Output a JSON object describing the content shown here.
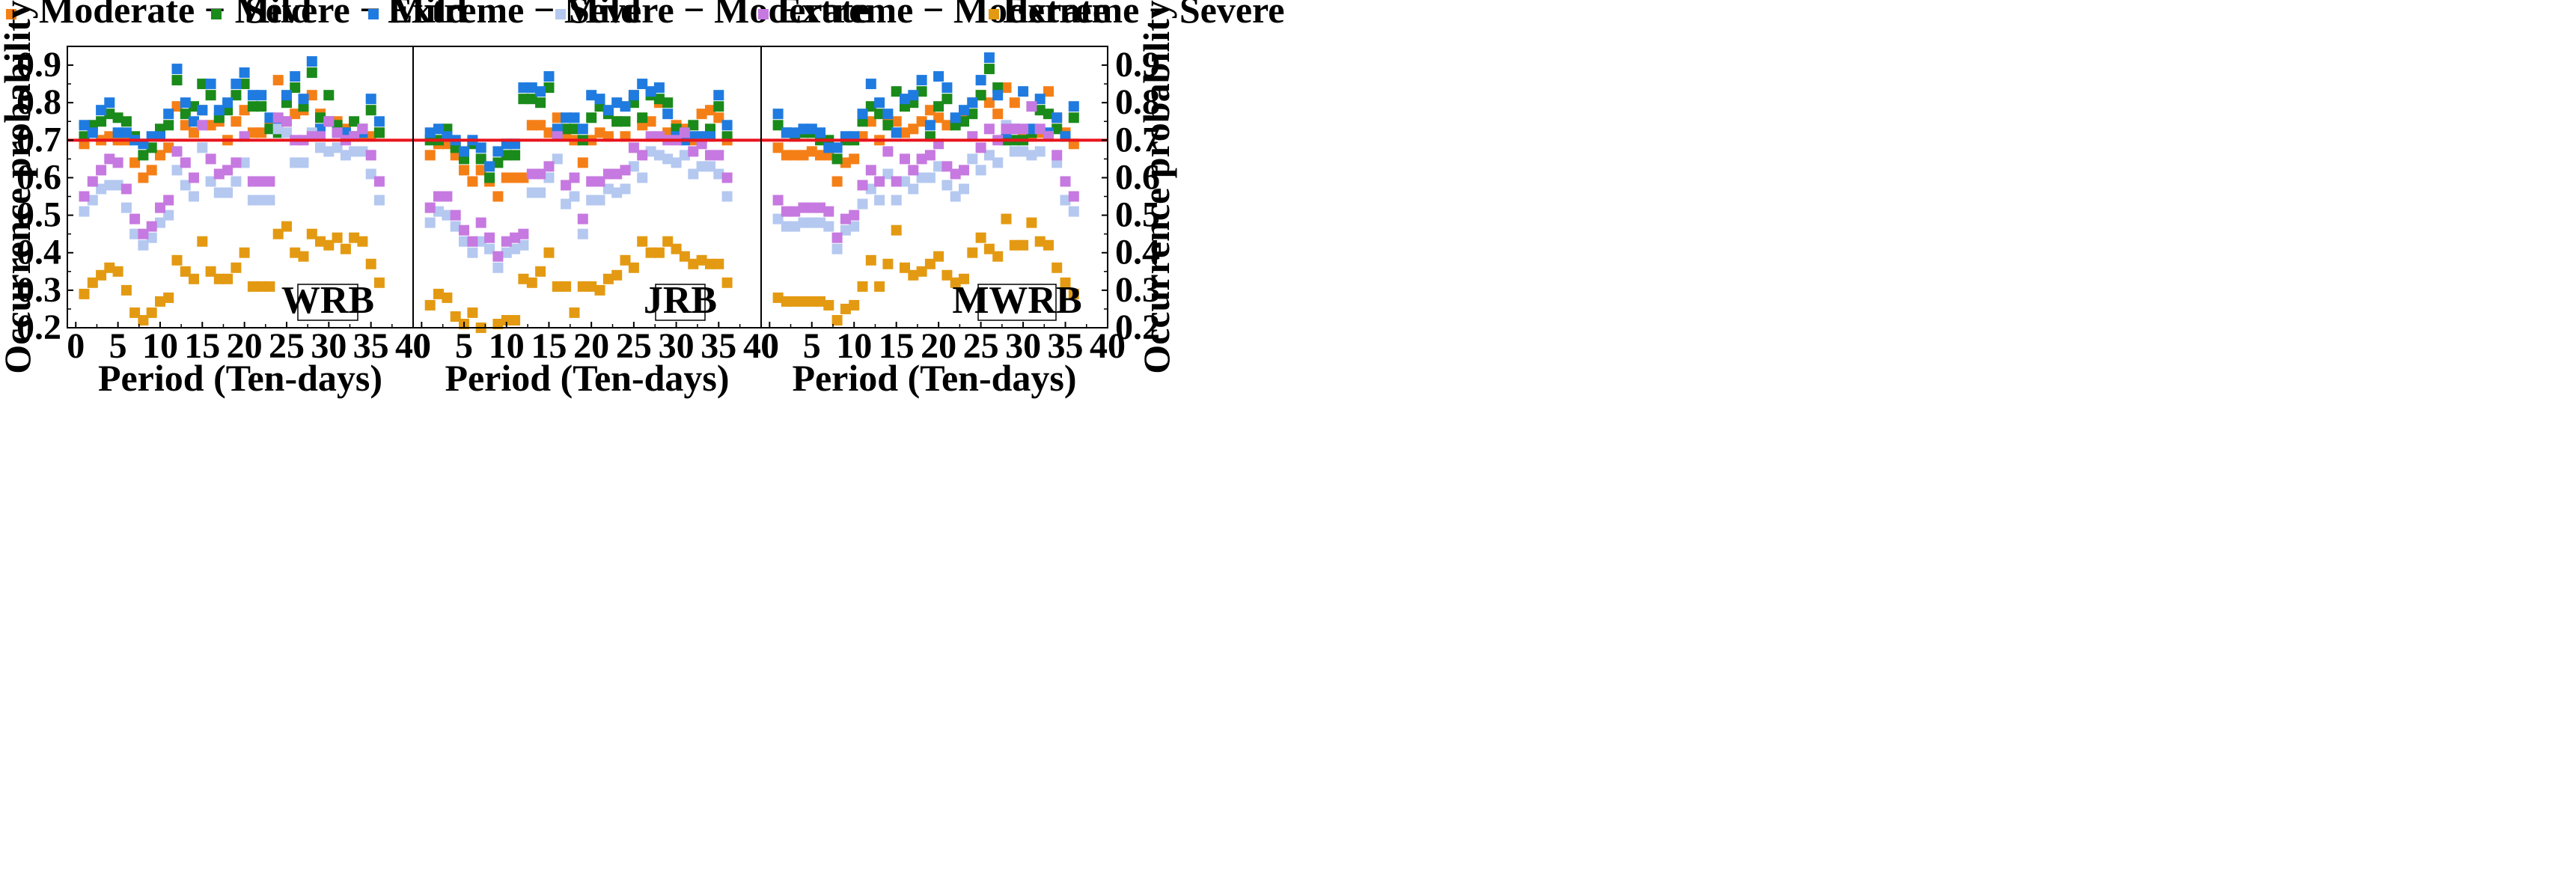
{
  "chart_data": {
    "type": "scatter",
    "ylabel": "Occurrence probability",
    "xlabel": "Period (Ten-days)",
    "xlim": [
      -1,
      40
    ],
    "ylim": [
      0.2,
      0.95
    ],
    "xticks": [
      0,
      5,
      10,
      15,
      20,
      25,
      30,
      35,
      40
    ],
    "yticks": [
      0.2,
      0.3,
      0.4,
      0.5,
      0.6,
      0.7,
      0.8,
      0.9
    ],
    "xtick_labels": [
      "0",
      "5",
      "10",
      "15",
      "20",
      "25",
      "30",
      "35",
      "40"
    ],
    "ytick_labels": [
      "0.2",
      "0.3",
      "0.4",
      "0.5",
      "0.6",
      "0.7",
      "0.8",
      "0.9"
    ],
    "threshold": {
      "value": 0.7,
      "color": "#e8141c"
    },
    "legend": {
      "position": "top",
      "entries": [
        {
          "label": "Moderate − Mild",
          "color": "#f57f17"
        },
        {
          "label": "Severe − Mild",
          "color": "#1a8a1a"
        },
        {
          "label": "Extreme − Mild",
          "color": "#1f7be0"
        },
        {
          "label": "Severe − Moderate",
          "color": "#b4c8f0"
        },
        {
          "label": "Extreme − Moderate",
          "color": "#c679e0"
        },
        {
          "label": "Extreme − Severe",
          "color": "#e39a12"
        }
      ]
    },
    "panels": [
      {
        "label": "WRB",
        "series": [
          {
            "name": "Moderate − Mild",
            "color": "#f57f17",
            "values": [
              0.69,
              0.73,
              0.7,
              0.71,
              0.7,
              0.7,
              0.64,
              0.6,
              0.62,
              0.66,
              0.68,
              0.79,
              0.74,
              0.72,
              0.78,
              0.74,
              0.75,
              0.7,
              0.75,
              0.78,
              0.72,
              0.72,
              0.74,
              0.86,
              0.75,
              0.77,
              0.78,
              0.82,
              0.77,
              0.75,
              0.75,
              0.73,
              0.71,
              0.71,
              0.71,
              0.72
            ]
          },
          {
            "name": "Severe − Mild",
            "color": "#1a8a1a",
            "values": [
              0.71,
              0.74,
              0.75,
              0.77,
              0.76,
              0.75,
              0.71,
              0.66,
              0.68,
              0.73,
              0.74,
              0.86,
              0.77,
              0.79,
              0.85,
              0.82,
              0.76,
              0.78,
              0.82,
              0.85,
              0.79,
              0.79,
              0.73,
              0.72,
              0.8,
              0.84,
              0.79,
              0.88,
              0.76,
              0.82,
              0.74,
              0.72,
              0.75,
              0.73,
              0.78,
              0.72
            ]
          },
          {
            "name": "Extreme − Mild",
            "color": "#1f7be0",
            "values": [
              0.74,
              0.72,
              0.78,
              0.8,
              0.72,
              0.72,
              0.7,
              0.69,
              0.71,
              0.71,
              0.77,
              0.89,
              0.8,
              0.75,
              0.78,
              0.85,
              0.78,
              0.8,
              0.85,
              0.88,
              0.82,
              0.82,
              0.76,
              0.75,
              0.82,
              0.87,
              0.81,
              0.91,
              0.73,
              0.75,
              0.72,
              0.72,
              0.71,
              0.72,
              0.81,
              0.75
            ]
          },
          {
            "name": "Severe − Moderate",
            "color": "#b4c8f0",
            "values": [
              0.51,
              0.54,
              0.57,
              0.58,
              0.58,
              0.52,
              0.45,
              0.42,
              0.44,
              0.48,
              0.5,
              0.62,
              0.58,
              0.55,
              0.68,
              0.59,
              0.56,
              0.56,
              0.59,
              0.64,
              0.54,
              0.54,
              0.54,
              0.73,
              0.72,
              0.64,
              0.64,
              0.72,
              0.68,
              0.67,
              0.68,
              0.66,
              0.67,
              0.67,
              0.61,
              0.54
            ]
          },
          {
            "name": "Extreme − Moderate",
            "color": "#c679e0",
            "values": [
              0.55,
              0.59,
              0.62,
              0.65,
              0.64,
              0.57,
              0.49,
              0.45,
              0.47,
              0.52,
              0.54,
              0.67,
              0.64,
              0.6,
              0.74,
              0.65,
              0.61,
              0.62,
              0.64,
              0.71,
              0.59,
              0.59,
              0.59,
              0.76,
              0.75,
              0.7,
              0.7,
              0.71,
              0.71,
              0.75,
              0.72,
              0.7,
              0.71,
              0.73,
              0.66,
              0.59
            ]
          },
          {
            "name": "Extreme − Severe",
            "color": "#e39a12",
            "values": [
              0.29,
              0.32,
              0.34,
              0.36,
              0.35,
              0.3,
              0.24,
              0.22,
              0.24,
              0.27,
              0.28,
              0.38,
              0.35,
              0.33,
              0.43,
              0.35,
              0.33,
              0.33,
              0.36,
              0.4,
              0.31,
              0.31,
              0.31,
              0.45,
              0.47,
              0.4,
              0.39,
              0.45,
              0.43,
              0.42,
              0.44,
              0.41,
              0.44,
              0.43,
              0.37,
              0.32
            ]
          }
        ]
      },
      {
        "label": "JRB",
        "series": [
          {
            "name": "Moderate − Mild",
            "color": "#f57f17",
            "values": [
              0.66,
              0.69,
              0.69,
              0.66,
              0.62,
              0.59,
              0.62,
              0.59,
              0.55,
              0.6,
              0.6,
              0.6,
              0.74,
              0.74,
              0.72,
              0.76,
              0.71,
              0.7,
              0.64,
              0.7,
              0.72,
              0.71,
              0.75,
              0.71,
              0.82,
              0.74,
              0.75,
              0.8,
              0.72,
              0.74,
              0.73,
              0.7,
              0.77,
              0.78,
              0.76,
              0.7
            ]
          },
          {
            "name": "Severe − Mild",
            "color": "#1a8a1a",
            "values": [
              0.7,
              0.7,
              0.73,
              0.68,
              0.65,
              0.69,
              0.65,
              0.6,
              0.64,
              0.66,
              0.66,
              0.81,
              0.81,
              0.8,
              0.84,
              0.72,
              0.73,
              0.73,
              0.7,
              0.76,
              0.79,
              0.77,
              0.75,
              0.75,
              0.8,
              0.76,
              0.82,
              0.81,
              0.8,
              0.73,
              0.72,
              0.74,
              0.7,
              0.73,
              0.79,
              0.71
            ]
          },
          {
            "name": "Extreme − Mild",
            "color": "#1f7be0",
            "values": [
              0.72,
              0.73,
              0.71,
              0.7,
              0.67,
              0.7,
              0.68,
              0.63,
              0.67,
              0.69,
              0.69,
              0.84,
              0.84,
              0.83,
              0.87,
              0.73,
              0.76,
              0.76,
              0.73,
              0.82,
              0.81,
              0.78,
              0.8,
              0.79,
              0.82,
              0.85,
              0.83,
              0.84,
              0.77,
              0.71,
              0.7,
              0.71,
              0.71,
              0.71,
              0.82,
              0.74
            ]
          },
          {
            "name": "Severe − Moderate",
            "color": "#b4c8f0",
            "values": [
              0.48,
              0.51,
              0.5,
              0.47,
              0.43,
              0.4,
              0.43,
              0.41,
              0.36,
              0.4,
              0.41,
              0.42,
              0.56,
              0.56,
              0.6,
              0.65,
              0.53,
              0.55,
              0.45,
              0.54,
              0.54,
              0.57,
              0.56,
              0.57,
              0.63,
              0.6,
              0.67,
              0.66,
              0.65,
              0.64,
              0.66,
              0.61,
              0.63,
              0.63,
              0.61,
              0.55
            ]
          },
          {
            "name": "Extreme − Moderate",
            "color": "#c679e0",
            "values": [
              0.52,
              0.55,
              0.55,
              0.5,
              0.46,
              0.43,
              0.48,
              0.44,
              0.39,
              0.43,
              0.44,
              0.45,
              0.61,
              0.61,
              0.63,
              0.71,
              0.58,
              0.6,
              0.49,
              0.59,
              0.59,
              0.61,
              0.61,
              0.62,
              0.68,
              0.66,
              0.71,
              0.71,
              0.7,
              0.7,
              0.72,
              0.67,
              0.69,
              0.66,
              0.66,
              0.6
            ]
          },
          {
            "name": "Extreme − Severe",
            "color": "#e39a12",
            "values": [
              0.26,
              0.29,
              0.28,
              0.23,
              0.21,
              0.24,
              0.2,
              0.19,
              0.21,
              0.22,
              0.22,
              0.33,
              0.32,
              0.35,
              0.4,
              0.31,
              0.31,
              0.24,
              0.31,
              0.31,
              0.3,
              0.33,
              0.34,
              0.38,
              0.36,
              0.43,
              0.4,
              0.4,
              0.43,
              0.41,
              0.39,
              0.37,
              0.38,
              0.37,
              0.37,
              0.32
            ]
          }
        ]
      },
      {
        "label": "MWRB",
        "series": [
          {
            "name": "Moderate − Mild",
            "color": "#f57f17",
            "values": [
              0.68,
              0.66,
              0.66,
              0.66,
              0.67,
              0.66,
              0.66,
              0.59,
              0.64,
              0.65,
              0.71,
              0.75,
              0.7,
              0.76,
              0.75,
              0.72,
              0.73,
              0.75,
              0.78,
              0.76,
              0.74,
              0.75,
              0.77,
              0.8,
              0.82,
              0.8,
              0.77,
              0.84,
              0.8,
              0.71,
              0.71,
              0.72,
              0.83,
              0.76,
              0.72,
              0.69
            ]
          },
          {
            "name": "Severe − Mild",
            "color": "#1a8a1a",
            "values": [
              0.74,
              0.72,
              0.71,
              0.72,
              0.72,
              0.7,
              0.7,
              0.65,
              0.7,
              0.7,
              0.75,
              0.79,
              0.77,
              0.74,
              0.83,
              0.79,
              0.8,
              0.83,
              0.71,
              0.79,
              0.81,
              0.74,
              0.75,
              0.77,
              0.82,
              0.89,
              0.84,
              0.7,
              0.7,
              0.7,
              0.72,
              0.78,
              0.77,
              0.73,
              0.71,
              0.76
            ]
          },
          {
            "name": "Extreme − Mild",
            "color": "#1f7be0",
            "values": [
              0.77,
              0.72,
              0.72,
              0.73,
              0.73,
              0.72,
              0.68,
              0.68,
              0.71,
              0.71,
              0.77,
              0.85,
              0.8,
              0.77,
              0.72,
              0.81,
              0.82,
              0.86,
              0.74,
              0.87,
              0.84,
              0.76,
              0.78,
              0.8,
              0.86,
              0.92,
              0.82,
              0.72,
              0.73,
              0.83,
              0.73,
              0.81,
              0.72,
              0.76,
              0.71,
              0.79
            ]
          },
          {
            "name": "Severe − Moderate",
            "color": "#b4c8f0",
            "values": [
              0.49,
              0.47,
              0.47,
              0.48,
              0.48,
              0.48,
              0.47,
              0.41,
              0.46,
              0.47,
              0.53,
              0.57,
              0.54,
              0.61,
              0.54,
              0.59,
              0.57,
              0.6,
              0.6,
              0.63,
              0.58,
              0.55,
              0.57,
              0.65,
              0.62,
              0.66,
              0.64,
              0.74,
              0.67,
              0.67,
              0.66,
              0.67,
              0.71,
              0.64,
              0.54,
              0.51
            ]
          },
          {
            "name": "Extreme − Moderate",
            "color": "#c679e0",
            "values": [
              0.54,
              0.51,
              0.51,
              0.52,
              0.52,
              0.52,
              0.51,
              0.44,
              0.49,
              0.5,
              0.58,
              0.62,
              0.59,
              0.67,
              0.59,
              0.65,
              0.62,
              0.65,
              0.66,
              0.69,
              0.63,
              0.61,
              0.62,
              0.71,
              0.68,
              0.73,
              0.7,
              0.73,
              0.73,
              0.73,
              0.79,
              0.73,
              0.71,
              0.66,
              0.59,
              0.55
            ]
          },
          {
            "name": "Extreme − Severe",
            "color": "#e39a12",
            "values": [
              0.28,
              0.27,
              0.27,
              0.27,
              0.27,
              0.27,
              0.26,
              0.22,
              0.25,
              0.26,
              0.31,
              0.38,
              0.31,
              0.37,
              0.46,
              0.36,
              0.34,
              0.35,
              0.37,
              0.39,
              0.34,
              0.32,
              0.33,
              0.4,
              0.44,
              0.41,
              0.39,
              0.49,
              0.42,
              0.42,
              0.48,
              0.43,
              0.42,
              0.36,
              0.32,
              0.29
            ]
          }
        ]
      }
    ]
  }
}
